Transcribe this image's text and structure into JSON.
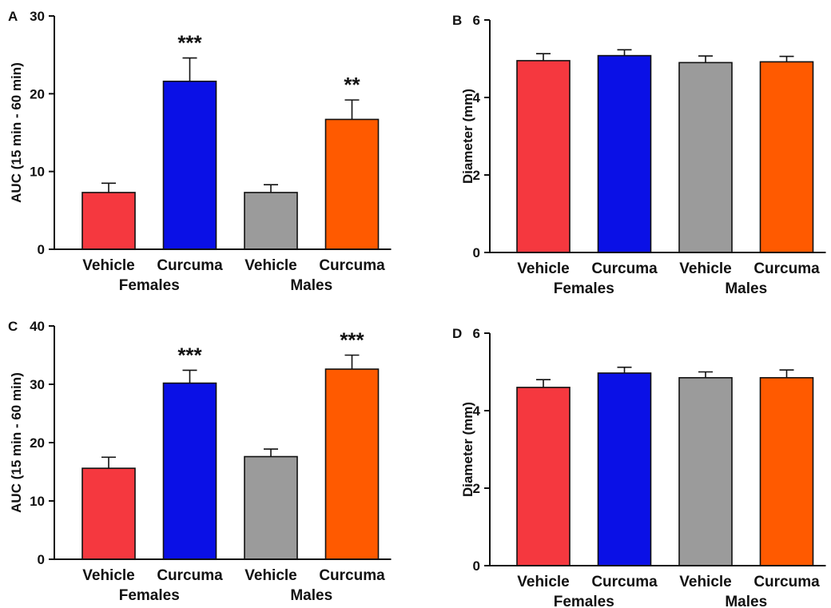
{
  "colors": {
    "vehicle_females": "#f5383f",
    "curcuma_females": "#0a10e6",
    "vehicle_males": "#9b9b9b",
    "curcuma_males": "#ff5a00",
    "axis": "#111111"
  },
  "chart_data": [
    {
      "type": "bar",
      "panel_label": "A",
      "ylabel": "AUC (15 min - 60 min)",
      "ylim": [
        0,
        30
      ],
      "yticks": [
        0,
        10,
        20,
        30
      ],
      "categories": [
        "Vehicle",
        "Curcuma",
        "Vehicle",
        "Curcuma"
      ],
      "groups": [
        {
          "label": "Females",
          "categories": [
            0,
            1
          ]
        },
        {
          "label": "Males",
          "categories": [
            2,
            3
          ]
        }
      ],
      "values": [
        7.3,
        21.6,
        7.3,
        16.7
      ],
      "errors": [
        1.2,
        3.0,
        1.0,
        2.5
      ],
      "significance": [
        "",
        "***",
        "",
        "**"
      ]
    },
    {
      "type": "bar",
      "panel_label": "B",
      "ylabel": "Diameter (mm)",
      "ylim": [
        0,
        6
      ],
      "yticks": [
        0,
        2,
        4,
        6
      ],
      "categories": [
        "Vehicle",
        "Curcuma",
        "Vehicle",
        "Curcuma"
      ],
      "groups": [
        {
          "label": "Females",
          "categories": [
            0,
            1
          ]
        },
        {
          "label": "Males",
          "categories": [
            2,
            3
          ]
        }
      ],
      "values": [
        4.95,
        5.08,
        4.9,
        4.92
      ],
      "errors": [
        0.18,
        0.15,
        0.17,
        0.14
      ],
      "significance": [
        "",
        "",
        "",
        ""
      ]
    },
    {
      "type": "bar",
      "panel_label": "C",
      "ylabel": "AUC (15 min - 60 min)",
      "ylim": [
        0,
        40
      ],
      "yticks": [
        0,
        10,
        20,
        30,
        40
      ],
      "categories": [
        "Vehicle",
        "Curcuma",
        "Vehicle",
        "Curcuma"
      ],
      "groups": [
        {
          "label": "Females",
          "categories": [
            0,
            1
          ]
        },
        {
          "label": "Males",
          "categories": [
            2,
            3
          ]
        }
      ],
      "values": [
        15.6,
        30.2,
        17.6,
        32.6
      ],
      "errors": [
        1.9,
        2.2,
        1.3,
        2.4
      ],
      "significance": [
        "",
        "***",
        "",
        "***"
      ]
    },
    {
      "type": "bar",
      "panel_label": "D",
      "ylabel": "Diameter (mm)",
      "ylim": [
        0,
        6
      ],
      "yticks": [
        0,
        2,
        4,
        6
      ],
      "categories": [
        "Vehicle",
        "Curcuma",
        "Vehicle",
        "Curcuma"
      ],
      "groups": [
        {
          "label": "Females",
          "categories": [
            0,
            1
          ]
        },
        {
          "label": "Males",
          "categories": [
            2,
            3
          ]
        }
      ],
      "values": [
        4.6,
        4.97,
        4.85,
        4.85
      ],
      "errors": [
        0.2,
        0.15,
        0.15,
        0.2
      ],
      "significance": [
        "",
        "",
        "",
        ""
      ]
    }
  ]
}
